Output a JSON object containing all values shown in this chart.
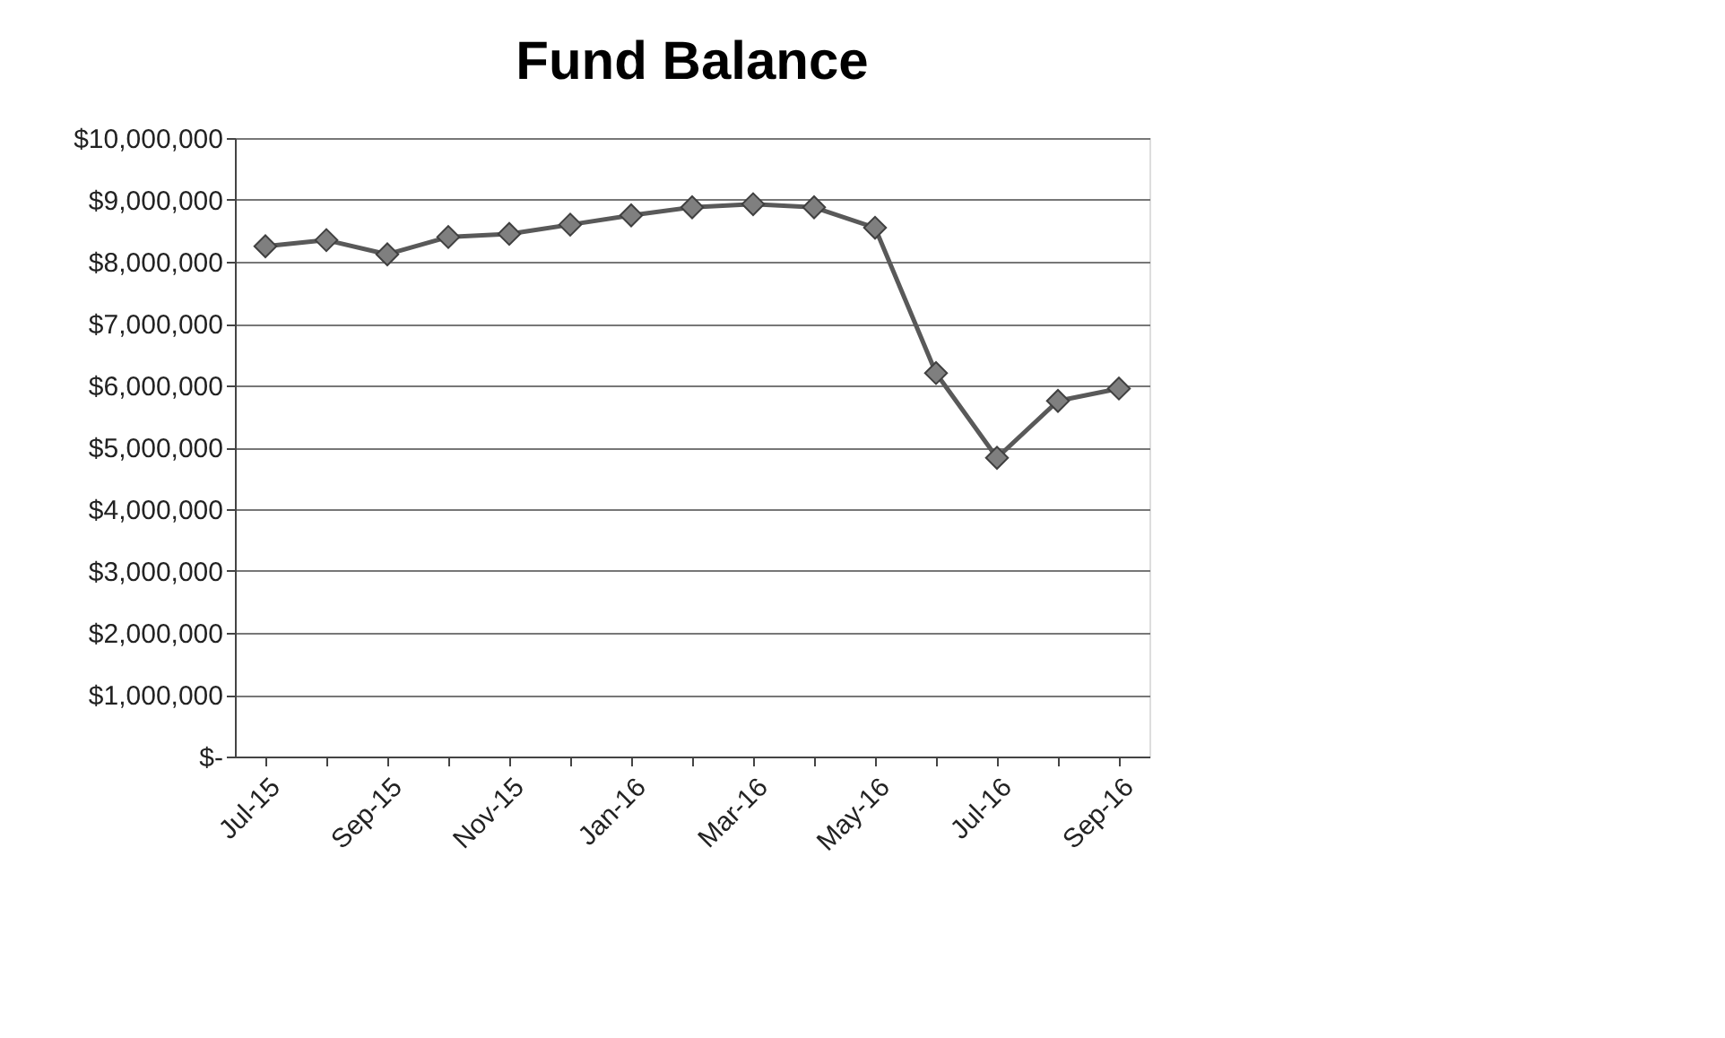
{
  "chart_data": {
    "type": "line",
    "title": "Fund Balance",
    "categories": [
      "Jul-15",
      null,
      "Sep-15",
      null,
      "Nov-15",
      null,
      "Jan-16",
      null,
      "Mar-16",
      null,
      "May-16",
      null,
      "Jul-16",
      null,
      "Sep-16"
    ],
    "series": [
      {
        "color": "#595959",
        "values": [
          8250000,
          8350000,
          8120000,
          8400000,
          8450000,
          8600000,
          8750000,
          8880000,
          8930000,
          8880000,
          8550000,
          6200000,
          4830000,
          5750000,
          5950000
        ]
      }
    ],
    "ylim": [
      0,
      10000000
    ],
    "yticks": [
      {
        "value": 0,
        "label": "$-"
      },
      {
        "value": 1000000,
        "label": "$1,000,000"
      },
      {
        "value": 2000000,
        "label": "$2,000,000"
      },
      {
        "value": 3000000,
        "label": "$3,000,000"
      },
      {
        "value": 4000000,
        "label": "$4,000,000"
      },
      {
        "value": 5000000,
        "label": "$5,000,000"
      },
      {
        "value": 6000000,
        "label": "$6,000,000"
      },
      {
        "value": 7000000,
        "label": "$7,000,000"
      },
      {
        "value": 8000000,
        "label": "$8,000,000"
      },
      {
        "value": 9000000,
        "label": "$9,000,000"
      },
      {
        "value": 10000000,
        "label": "$10,000,000"
      }
    ],
    "grid": "y",
    "marker": "diamond",
    "line_style": "solid"
  }
}
